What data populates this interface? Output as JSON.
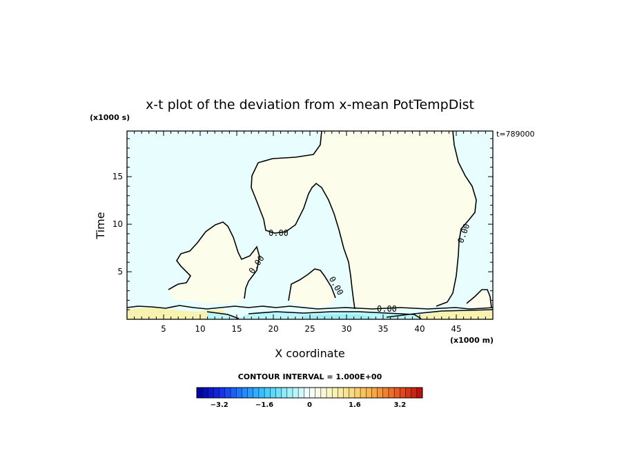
{
  "chart_data": {
    "type": "heatmap",
    "title": "x-t plot of the deviation from x-mean PotTempDist",
    "xlabel": "X coordinate",
    "ylabel": "Time",
    "x_unit": "(x1000 m)",
    "y_unit": "(x1000 s)",
    "time_stamp": "t=789000",
    "xlim": [
      0,
      50
    ],
    "ylim": [
      0,
      19.8
    ],
    "x_ticks": [
      5,
      10,
      15,
      20,
      25,
      30,
      35,
      40,
      45
    ],
    "y_ticks": [
      5,
      10,
      15
    ],
    "contour_interval_text": "CONTOUR INTERVAL = 1.000E+00",
    "contour_labels": [
      "0.00",
      "0.00",
      "0.00",
      "0.00",
      "0.00"
    ],
    "colorbar": {
      "min": -4.0,
      "max": 4.0,
      "step": 0.2,
      "tick_values": [
        -3.2,
        -1.6,
        0,
        1.6,
        3.2
      ],
      "tick_labels": [
        "−3.2",
        "−1.6",
        "0",
        "1.6",
        "3.2"
      ]
    },
    "colors": {
      "negative_fill": "#e8fdfd",
      "positive_fill": "#fdfdec",
      "warm_band": "#f7f2b0",
      "cool_band": "#b8f6fb"
    }
  }
}
